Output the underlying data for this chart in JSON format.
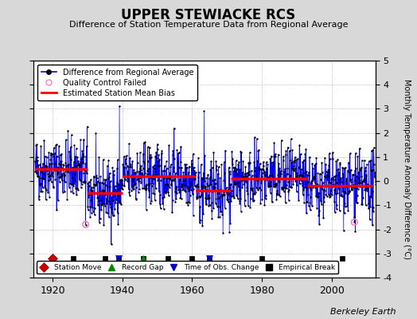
{
  "title": "UPPER STEWIACKE RCS",
  "subtitle": "Difference of Station Temperature Data from Regional Average",
  "ylabel": "Monthly Temperature Anomaly Difference (°C)",
  "xlabel_years": [
    1920,
    1940,
    1960,
    1980,
    2000
  ],
  "xlim": [
    1914.5,
    2012.5
  ],
  "ylim": [
    -4,
    5
  ],
  "yticks": [
    -4,
    -3,
    -2,
    -1,
    0,
    1,
    2,
    3,
    4,
    5
  ],
  "fig_bg_color": "#d8d8d8",
  "plot_bg_color": "#ffffff",
  "line_color": "#0000ff",
  "dot_color": "#000000",
  "bias_color": "#ff0000",
  "qc_color": "#ff80c0",
  "watermark": "Berkeley Earth",
  "seed": 42,
  "start_year": 1915,
  "end_year": 2012,
  "bias_segments": [
    {
      "start": 1915.0,
      "end": 1930.0,
      "value": 0.5
    },
    {
      "start": 1930.0,
      "end": 1940.0,
      "value": -0.5
    },
    {
      "start": 1940.0,
      "end": 1961.0,
      "value": 0.2
    },
    {
      "start": 1961.0,
      "end": 1971.0,
      "value": -0.4
    },
    {
      "start": 1971.0,
      "end": 1993.0,
      "value": 0.1
    },
    {
      "start": 1993.0,
      "end": 2012.0,
      "value": -0.2
    }
  ],
  "empirical_breaks": [
    1920,
    1926,
    1935,
    1939,
    1946,
    1953,
    1960,
    1965,
    1980,
    2003
  ],
  "station_moves": [
    1920
  ],
  "record_gaps": [
    1946
  ],
  "tobs_changes": [
    1939,
    1965
  ],
  "qc_failed_years": [
    1929,
    2006
  ],
  "qc_failed_values": [
    -1.8,
    -1.7
  ],
  "spike_year": 1939,
  "spike_value": 3.1,
  "spike2_year": 1963,
  "spike2_value": 2.9,
  "y_marker": -3.2,
  "noise_std": 0.65
}
